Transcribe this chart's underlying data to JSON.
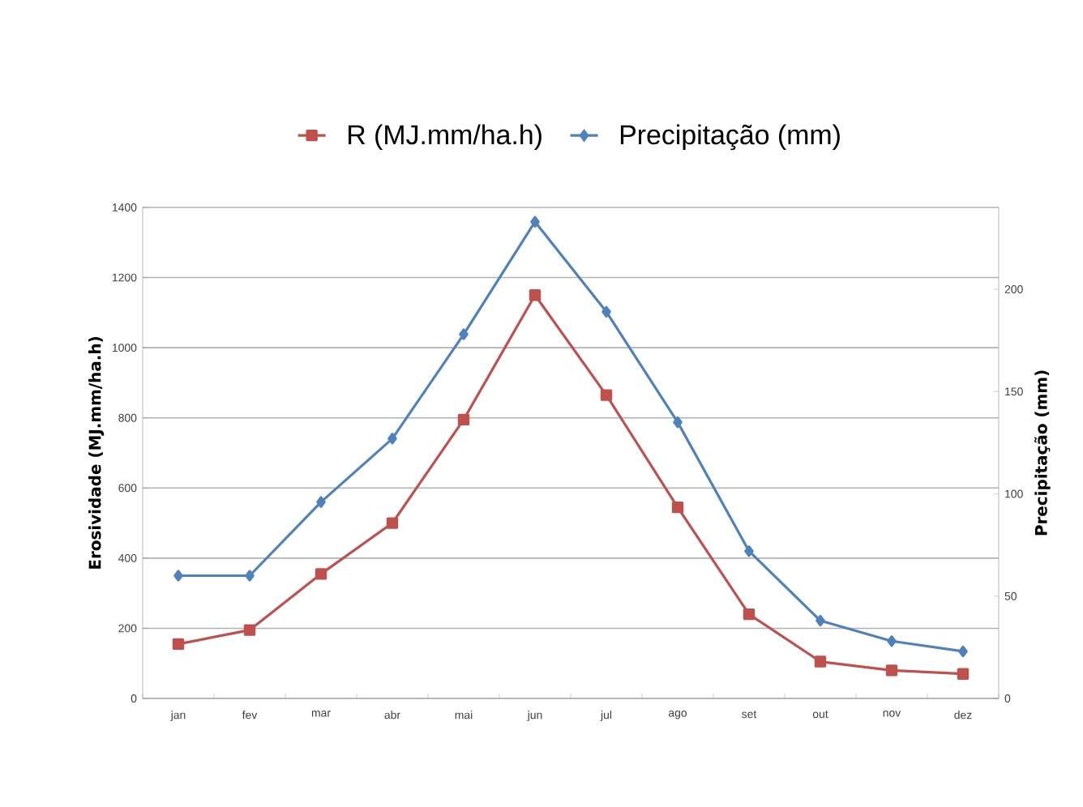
{
  "chart_data": {
    "type": "line",
    "categories": [
      "jan",
      "fev",
      "mar",
      "abr",
      "mai",
      "jun",
      "jul",
      "ago",
      "set",
      "out",
      "nov",
      "dez"
    ],
    "series": [
      {
        "name": "R (MJ.mm/ha.h)",
        "color": "#c0504d",
        "marker": "square",
        "values": [
          155,
          195,
          355,
          500,
          795,
          1150,
          865,
          545,
          240,
          105,
          80,
          70
        ]
      },
      {
        "name": "Precipitação (mm)",
        "color": "#4f81bd",
        "marker": "diamond",
        "axis": "y2",
        "values": [
          60,
          60,
          96,
          127,
          178,
          233,
          189,
          135,
          72,
          38,
          28,
          23
        ]
      }
    ],
    "ylabel": "Erosividade (MJ.mm/ha.h)",
    "y2label": "Precipitação (mm)",
    "ylim": [
      0,
      1400
    ],
    "yticks": [
      0,
      200,
      400,
      600,
      800,
      1000,
      1200,
      1400
    ],
    "y2lim": [
      0,
      240
    ],
    "y2ticks": [
      0,
      50,
      100,
      150,
      200
    ],
    "grid": "y",
    "legend": "top"
  }
}
